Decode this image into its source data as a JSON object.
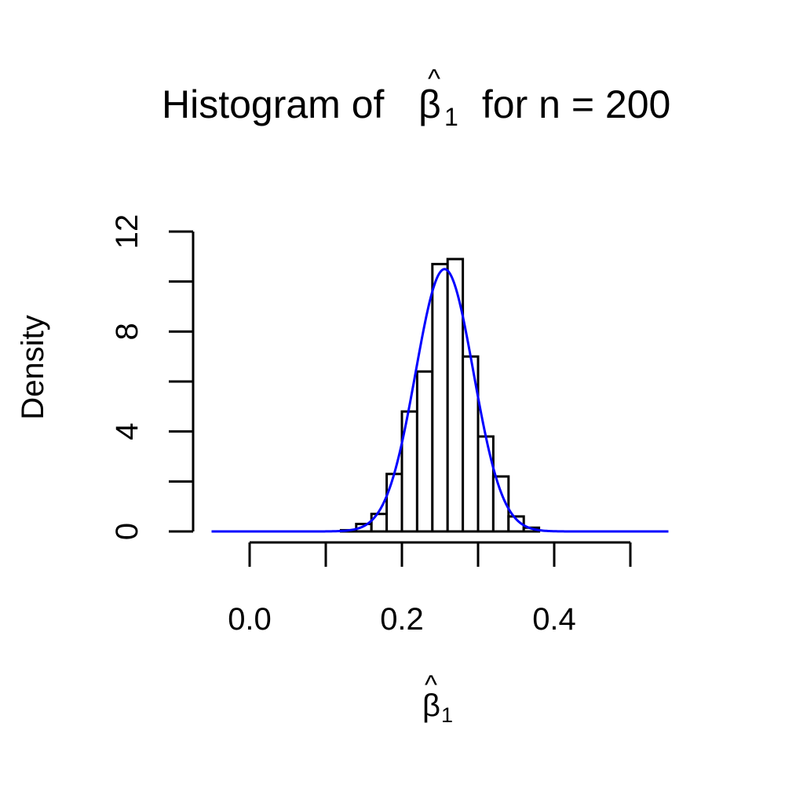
{
  "chart_data": {
    "type": "bar",
    "title": {
      "prefix": "Histogram of ",
      "symbol": "β",
      "hat": "^",
      "subscript": "1",
      "suffix": " for n = 200"
    },
    "xlabel": {
      "symbol": "β",
      "hat": "^",
      "subscript": "1"
    },
    "ylabel": "Density",
    "xlim": [
      -0.05,
      0.55
    ],
    "ylim": [
      0,
      12
    ],
    "x_ticks": [
      0.0,
      0.1,
      0.2,
      0.3,
      0.4,
      0.5
    ],
    "x_tick_labels": [
      "0.0",
      "",
      "0.2",
      "",
      "0.4",
      ""
    ],
    "y_ticks": [
      0,
      2,
      4,
      6,
      8,
      10,
      12
    ],
    "y_tick_labels": [
      "0",
      "",
      "4",
      "",
      "8",
      "",
      "12"
    ],
    "bins": {
      "edges": [
        0.12,
        0.14,
        0.16,
        0.18,
        0.2,
        0.22,
        0.24,
        0.26,
        0.28,
        0.3,
        0.32,
        0.34,
        0.36,
        0.38
      ],
      "densities": [
        0.05,
        0.3,
        0.7,
        2.3,
        4.8,
        6.4,
        10.7,
        10.9,
        7.0,
        3.8,
        2.2,
        0.6,
        0.15
      ]
    },
    "density_curve": {
      "color": "#0000ff",
      "mean": 0.256,
      "sd": 0.038,
      "x_range": [
        -0.05,
        0.55
      ]
    },
    "grid": false,
    "legend": "none",
    "bar_fill": "#ffffff",
    "bar_stroke": "#000000"
  }
}
